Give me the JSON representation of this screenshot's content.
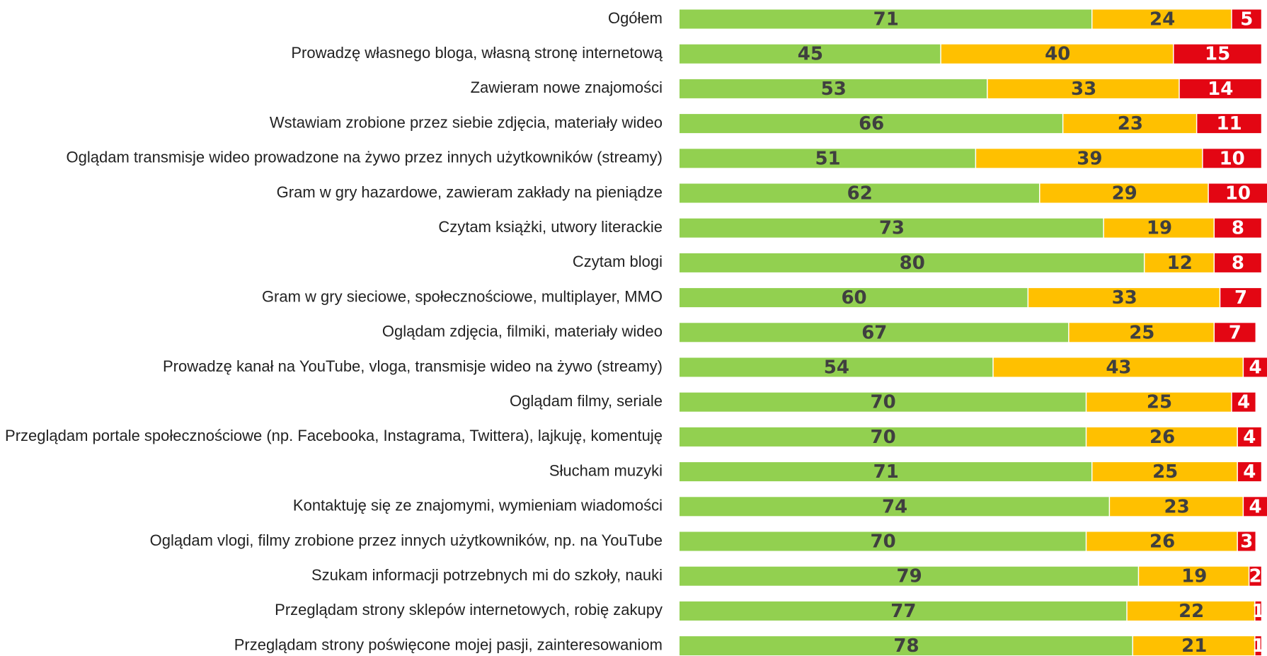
{
  "chart_data": {
    "type": "stacked_bar_horizontal",
    "categories": [
      "Ogółem",
      "Prowadzę własnego bloga, własną stronę internetową",
      "Zawieram nowe znajomości",
      "Wstawiam zrobione przez siebie zdjęcia, materiały wideo",
      "Oglądam transmisje wideo prowadzone na żywo przez innych użytkowników (streamy)",
      "Gram w gry hazardowe, zawieram zakłady na pieniądze",
      "Czytam książki, utwory literackie",
      "Czytam blogi",
      "Gram w gry sieciowe, społecznościowe, multiplayer, MMO",
      "Oglądam zdjęcia, filmiki, materiały wideo",
      "Prowadzę kanał na YouTube, vloga, transmisje wideo na żywo (streamy)",
      "Oglądam filmy, seriale",
      "Przeglądam portale społecznościowe (np. Facebooka, Instagrama, Twittera), lajkuję, komentuję",
      "Słucham muzyki",
      "Kontaktuję się ze znajomymi, wymieniam wiadomości",
      "Oglądam vlogi, filmy zrobione przez innych użytkowników, np. na YouTube",
      "Szukam informacji potrzebnych mi do szkoły, nauki",
      "Przeglądam strony sklepów internetowych, robię zakupy",
      "Przeglądam strony poświęcone mojej pasji, zainteresowaniom"
    ],
    "series": [
      {
        "color": "#92d050",
        "values": [
          71,
          45,
          53,
          66,
          51,
          62,
          73,
          80,
          60,
          67,
          54,
          70,
          70,
          71,
          74,
          70,
          79,
          77,
          78
        ]
      },
      {
        "color": "#ffc000",
        "values": [
          24,
          40,
          33,
          23,
          39,
          29,
          19,
          12,
          33,
          25,
          43,
          25,
          26,
          25,
          23,
          26,
          19,
          22,
          21
        ]
      },
      {
        "color": "#e30613",
        "values": [
          5,
          15,
          14,
          11,
          10,
          10,
          8,
          8,
          7,
          7,
          4,
          4,
          4,
          4,
          4,
          3,
          2,
          1,
          1
        ]
      }
    ]
  }
}
